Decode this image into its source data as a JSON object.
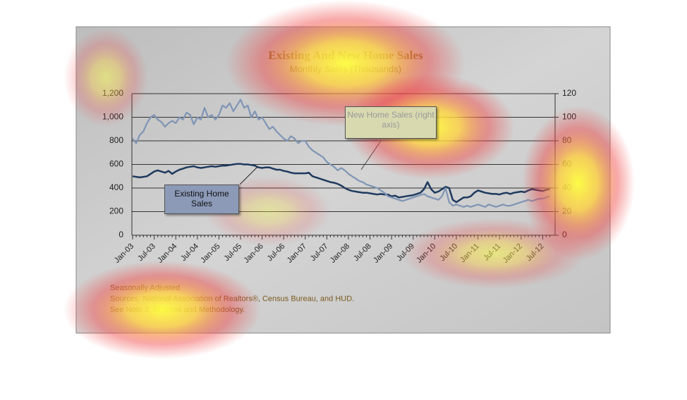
{
  "chart_data": {
    "type": "line",
    "title": "Existing And New Home Sales",
    "subtitle": "Monthly Sales (Thousands)",
    "categories": [
      "Jan-03",
      null,
      null,
      null,
      null,
      null,
      "Jul-03",
      null,
      null,
      null,
      null,
      null,
      "Jan-04",
      null,
      null,
      null,
      null,
      null,
      "Jul-04",
      null,
      null,
      null,
      null,
      null,
      "Jan-05",
      null,
      null,
      null,
      null,
      null,
      "Jul-05",
      null,
      null,
      null,
      null,
      null,
      "Jan-06",
      null,
      null,
      null,
      null,
      null,
      "Jul-06",
      null,
      null,
      null,
      null,
      null,
      "Jan-07",
      null,
      null,
      null,
      null,
      null,
      "Jul-07",
      null,
      null,
      null,
      null,
      null,
      "Jan-08",
      null,
      null,
      null,
      null,
      null,
      "Jul-08",
      null,
      null,
      null,
      null,
      null,
      "Jan-09",
      null,
      null,
      null,
      null,
      null,
      "Jul-09",
      null,
      null,
      null,
      null,
      null,
      "Jan-10",
      null,
      null,
      null,
      null,
      null,
      "Jul-10",
      null,
      null,
      null,
      null,
      null,
      "Jan-11",
      null,
      null,
      null,
      null,
      null,
      "Jul-11",
      null,
      null,
      null,
      null,
      null,
      "Jan-12",
      null,
      null,
      null,
      null,
      null,
      "Jul-12",
      null,
      null
    ],
    "series": [
      {
        "name": "Existing Home Sales",
        "color": "#1f3a5f",
        "values": [
          500,
          495,
          490,
          495,
          500,
          520,
          540,
          550,
          540,
          530,
          545,
          520,
          540,
          555,
          565,
          575,
          580,
          585,
          575,
          570,
          575,
          580,
          585,
          580,
          585,
          590,
          590,
          595,
          600,
          605,
          605,
          600,
          600,
          595,
          590,
          575,
          570,
          575,
          575,
          565,
          555,
          555,
          545,
          540,
          530,
          525,
          525,
          525,
          525,
          530,
          500,
          490,
          480,
          470,
          460,
          450,
          445,
          435,
          420,
          400,
          385,
          375,
          370,
          365,
          360,
          360,
          355,
          350,
          345,
          350,
          345,
          345,
          330,
          335,
          320,
          325,
          330,
          335,
          340,
          350,
          360,
          390,
          450,
          390,
          360,
          370,
          390,
          410,
          400,
          300,
          280,
          300,
          320,
          320,
          330,
          360,
          380,
          370,
          360,
          355,
          350,
          350,
          345,
          355,
          360,
          350,
          360,
          365,
          370,
          365,
          380,
          390,
          385,
          380,
          375,
          385,
          390
        ]
      },
      {
        "name": "New Home Sales (right axis)",
        "color": "#7f95b5",
        "axis": "y2",
        "values": [
          82,
          78,
          85,
          88,
          95,
          100,
          102,
          98,
          96,
          92,
          95,
          97,
          95,
          100,
          98,
          104,
          102,
          94,
          100,
          98,
          108,
          100,
          102,
          98,
          102,
          110,
          108,
          112,
          105,
          110,
          115,
          108,
          110,
          100,
          105,
          98,
          100,
          95,
          90,
          92,
          88,
          85,
          82,
          80,
          84,
          82,
          78,
          80,
          80,
          75,
          72,
          70,
          68,
          66,
          62,
          60,
          58,
          55,
          57,
          55,
          52,
          50,
          48,
          46,
          45,
          43,
          42,
          41,
          40,
          38,
          36,
          33,
          32,
          31,
          30,
          29,
          30,
          31,
          32,
          33,
          34,
          35,
          33,
          32,
          31,
          30,
          33,
          40,
          28,
          25,
          26,
          25,
          24,
          25,
          24,
          25,
          26,
          25,
          24,
          26,
          25,
          24,
          25,
          26,
          25,
          25,
          26,
          27,
          28,
          29,
          30,
          29,
          30,
          31,
          31,
          32,
          33
        ]
      }
    ],
    "ylim": [
      0,
      1200
    ],
    "yticks": [
      0,
      200,
      400,
      600,
      800,
      {
        "value": 1000,
        "label": "1,000"
      },
      {
        "value": 1200,
        "label": "1,200"
      }
    ],
    "y2lim": [
      0,
      120
    ],
    "y2ticks": [
      0,
      20,
      40,
      60,
      80,
      100,
      120
    ],
    "grid": true,
    "notes": [
      "Seasonally Adjusted",
      "Sources:  National Association of Realtors®, Census Bureau, and HUD.",
      "See Note 3, Sources and Methodology."
    ]
  }
}
